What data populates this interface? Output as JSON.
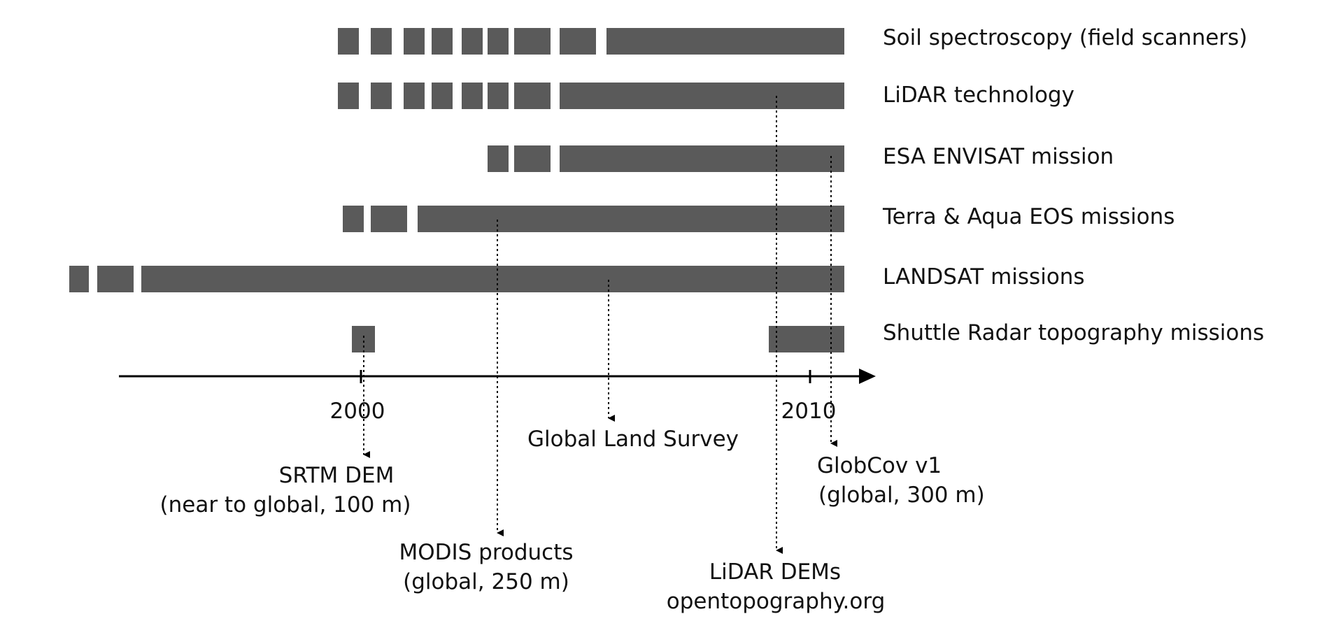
{
  "colors": {
    "bar": "#5a5a5a",
    "axis": "#000000",
    "text": "#111111"
  },
  "rows": [
    {
      "label": "Soil spectroscopy (field scanners)"
    },
    {
      "label": "LiDAR technology"
    },
    {
      "label": "ESA ENVISAT mission"
    },
    {
      "label": "Terra & Aqua EOS missions"
    },
    {
      "label": "LANDSAT missions"
    },
    {
      "label": "Shuttle Radar topography missions"
    }
  ],
  "axis": {
    "ticks": [
      "2000",
      "2010"
    ]
  },
  "products": [
    {
      "lines": [
        "SRTM DEM",
        "(near to global, 100 m)"
      ]
    },
    {
      "lines": [
        "MODIS products",
        "(global, 250 m)"
      ]
    },
    {
      "lines": [
        "Global Land Survey"
      ]
    },
    {
      "lines": [
        "LiDAR DEMs",
        "opentopography.org"
      ]
    },
    {
      "lines": [
        "GlobCov v1",
        "(global, 300 m)"
      ]
    }
  ]
}
